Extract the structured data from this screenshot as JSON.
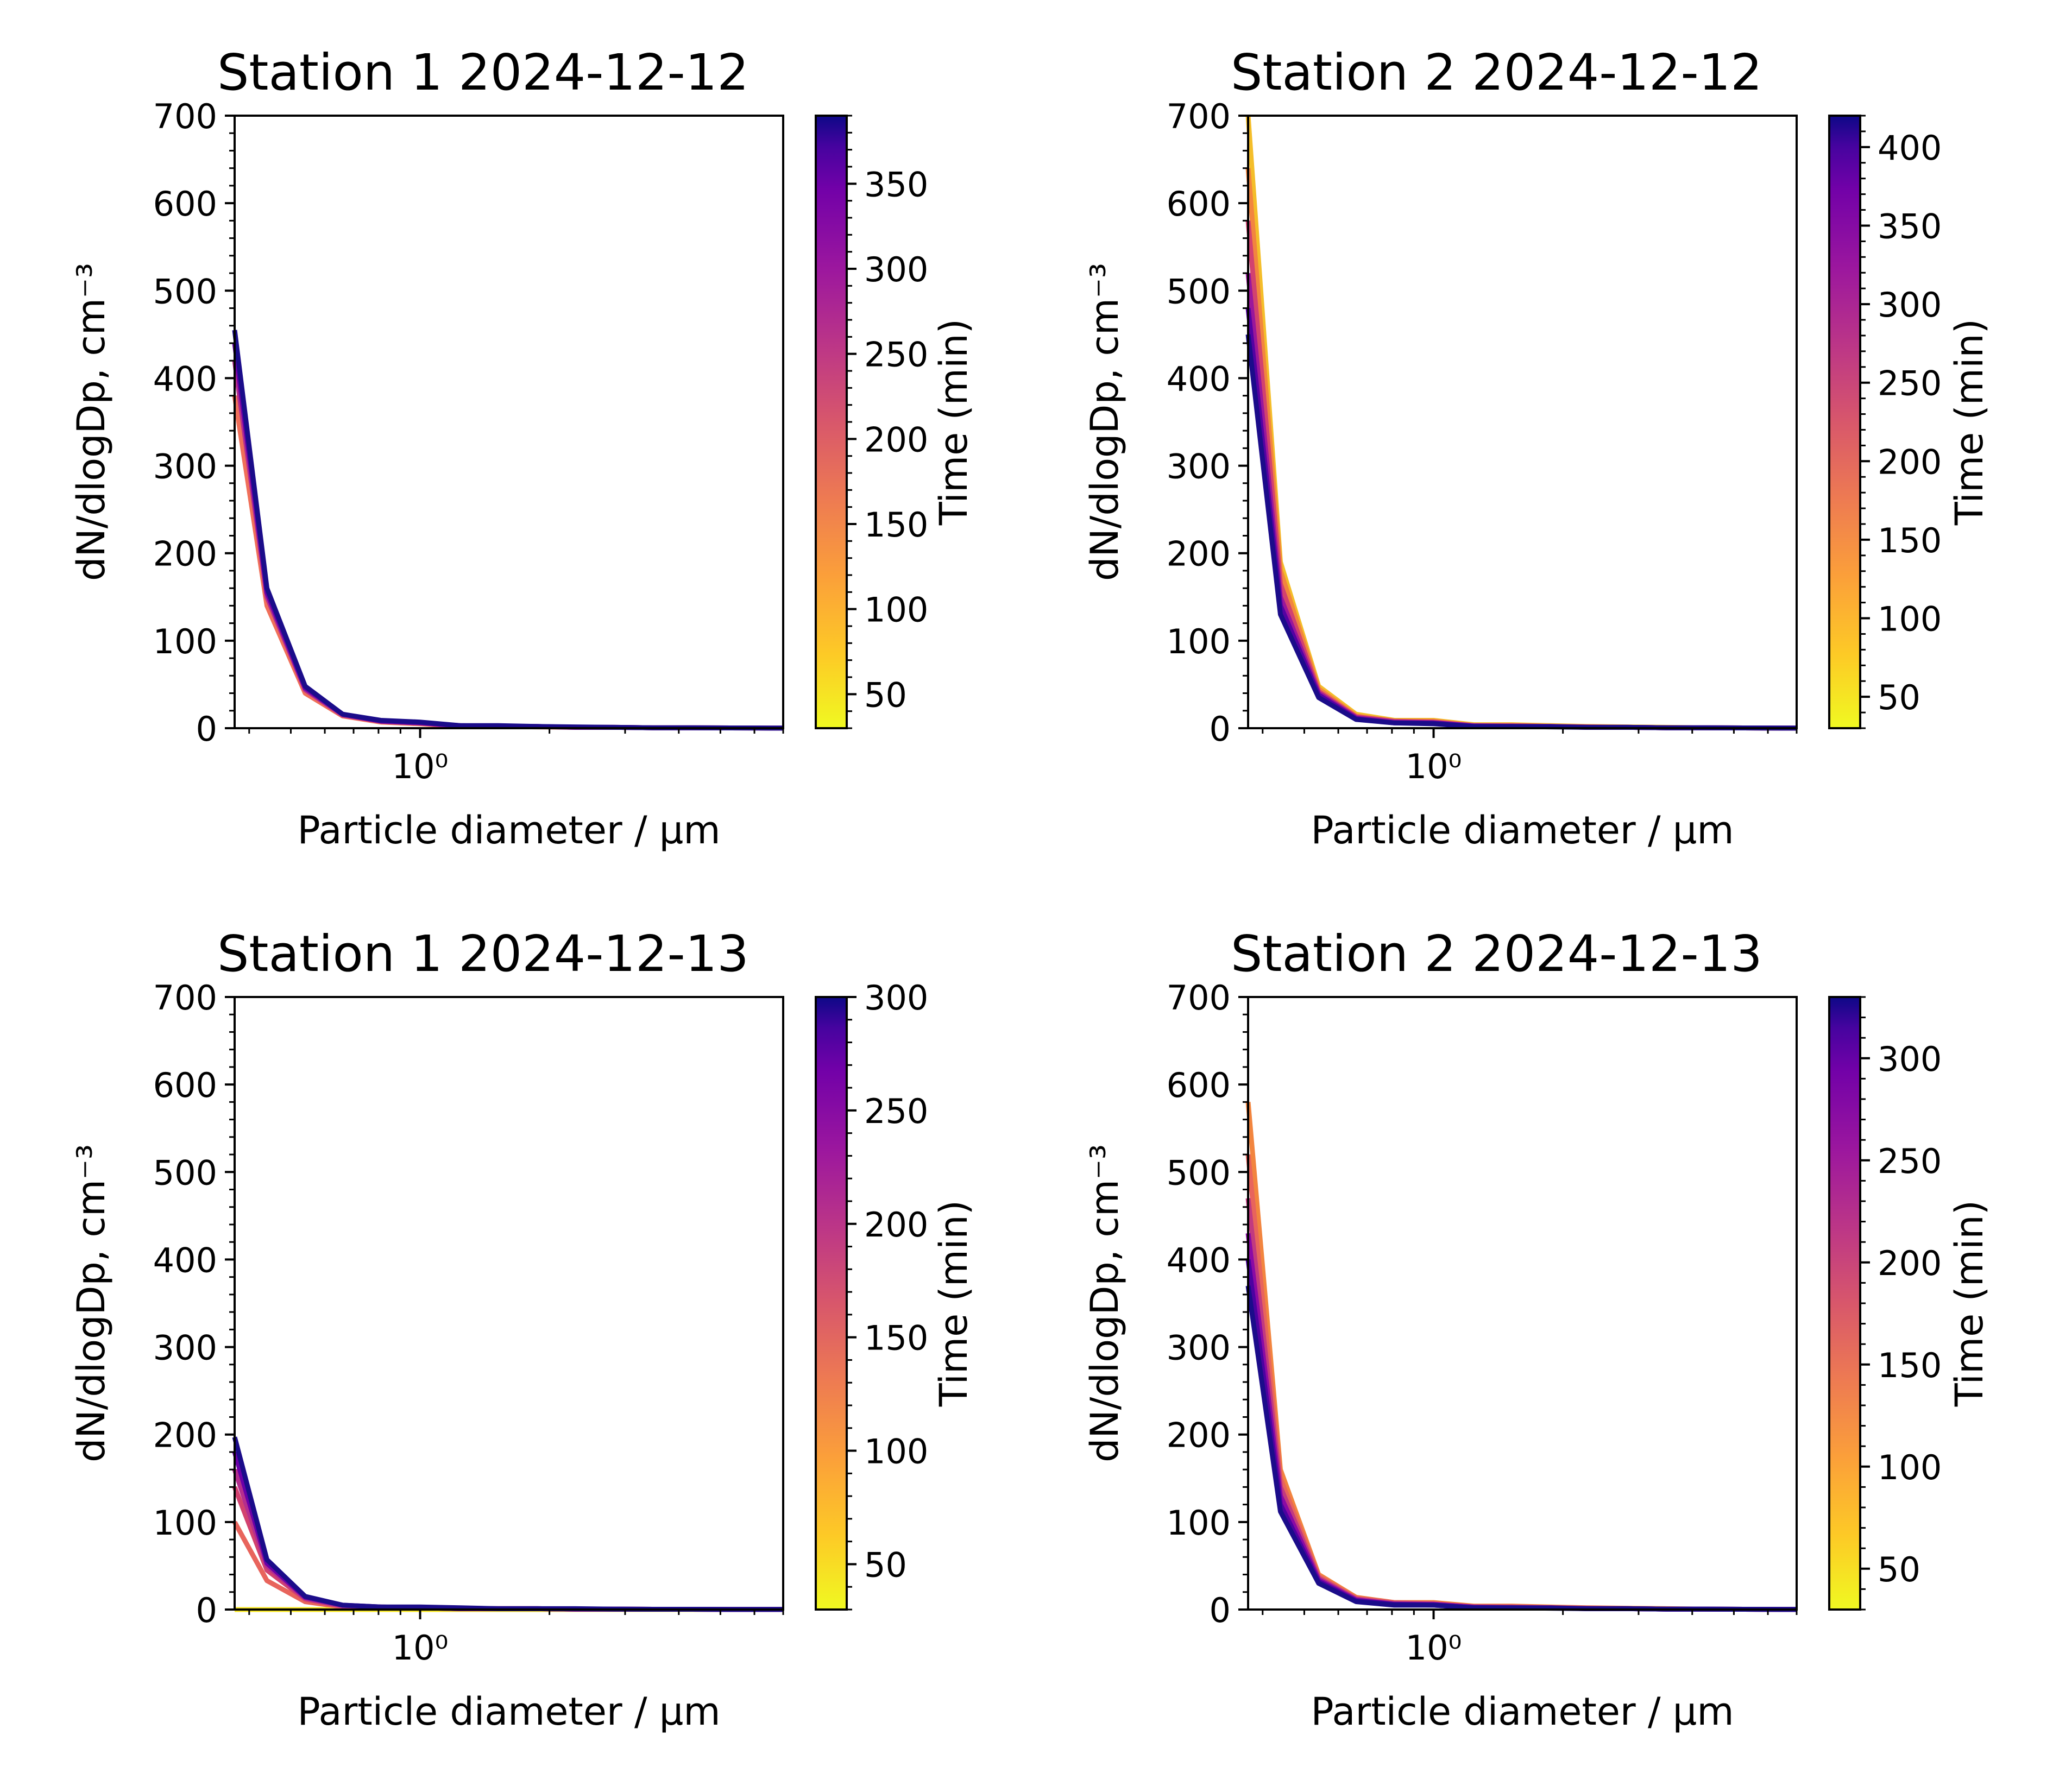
{
  "chart_data": [
    {
      "type": "line",
      "title": "Station 1 2024-12-12",
      "xlabel": "Particle diameter / μm",
      "ylabel": "dN/dlogDp, cm⁻³",
      "xscale": "log",
      "xlim": [
        0.37,
        7.0
      ],
      "ylim": [
        0,
        700
      ],
      "x_tick_labels": [
        "10⁰"
      ],
      "y_tick_labels": [
        "0",
        "100",
        "200",
        "300",
        "400",
        "500",
        "600",
        "700"
      ],
      "x": [
        0.37,
        0.44,
        0.54,
        0.66,
        0.81,
        1.0,
        1.24,
        1.52,
        1.87,
        2.3,
        2.83,
        3.49,
        4.29,
        5.28,
        6.5,
        7.0
      ],
      "colorbar": {
        "label": "Time (min)",
        "cmap": "plasma_r",
        "range": [
          30,
          390
        ],
        "tick_labels": [
          "50",
          "100",
          "150",
          "200",
          "250",
          "300",
          "350"
        ]
      },
      "series": [
        {
          "time": 150,
          "color": "#f0705a",
          "values": [
            380,
            140,
            40,
            14,
            7,
            5,
            2,
            2,
            1.5,
            1,
            1,
            0.5,
            0.5,
            0.3,
            0.2,
            0.2
          ]
        },
        {
          "time": 250,
          "color": "#b42e8e",
          "values": [
            420,
            150,
            44,
            15,
            8,
            6,
            2,
            2,
            2,
            1,
            1,
            0.5,
            0.5,
            0.3,
            0.2,
            0.2
          ]
        },
        {
          "time": 320,
          "color": "#6a00a8",
          "values": [
            440,
            155,
            46,
            16,
            8,
            6,
            3,
            2,
            2,
            1,
            1,
            0.5,
            0.5,
            0.3,
            0.2,
            0.2
          ]
        },
        {
          "time": 385,
          "color": "#1b0c8a",
          "values": [
            455,
            160,
            48,
            16,
            9,
            7,
            3,
            3,
            2,
            1.5,
            1,
            0.5,
            0.5,
            0.3,
            0.2,
            0.2
          ]
        }
      ]
    },
    {
      "type": "line",
      "title": "Station 2 2024-12-12",
      "xlabel": "Particle diameter / μm",
      "ylabel": "dN/dlogDp, cm⁻³",
      "xscale": "log",
      "xlim": [
        0.37,
        7.0
      ],
      "ylim": [
        0,
        700
      ],
      "x_tick_labels": [
        "10⁰"
      ],
      "y_tick_labels": [
        "0",
        "100",
        "200",
        "300",
        "400",
        "500",
        "600",
        "700"
      ],
      "x": [
        0.37,
        0.44,
        0.54,
        0.66,
        0.81,
        1.0,
        1.24,
        1.52,
        1.87,
        2.3,
        2.83,
        3.49,
        4.29,
        5.28,
        6.5,
        7.0
      ],
      "colorbar": {
        "label": "Time (min)",
        "cmap": "plasma_r",
        "range": [
          30,
          420
        ],
        "tick_labels": [
          "50",
          "100",
          "150",
          "200",
          "250",
          "300",
          "350",
          "400"
        ]
      },
      "series": [
        {
          "time": 60,
          "color": "#f4be2a",
          "values": [
            700,
            190,
            48,
            16,
            9,
            9,
            4,
            4,
            3,
            2,
            1.5,
            1,
            0.5,
            0.3,
            0.2,
            0.2
          ]
        },
        {
          "time": 130,
          "color": "#f2853f",
          "values": [
            640,
            180,
            45,
            14,
            8,
            8,
            3,
            3,
            2,
            1.5,
            1,
            0.5,
            0.5,
            0.3,
            0.2,
            0.2
          ]
        },
        {
          "time": 200,
          "color": "#d2426f",
          "values": [
            580,
            165,
            42,
            13,
            8,
            7,
            3,
            3,
            2,
            1.5,
            1,
            0.5,
            0.5,
            0.3,
            0.2,
            0.2
          ]
        },
        {
          "time": 280,
          "color": "#9a179b",
          "values": [
            520,
            150,
            40,
            12,
            7,
            6,
            3,
            2,
            2,
            1,
            1,
            0.5,
            0.5,
            0.3,
            0.2,
            0.2
          ]
        },
        {
          "time": 350,
          "color": "#5402a3",
          "values": [
            480,
            140,
            38,
            11,
            6,
            6,
            2,
            2,
            2,
            1,
            1,
            0.5,
            0.5,
            0.3,
            0.2,
            0.2
          ]
        },
        {
          "time": 415,
          "color": "#1b0c8a",
          "values": [
            450,
            130,
            35,
            10,
            6,
            5,
            2,
            2,
            1.5,
            1,
            1,
            0.5,
            0.5,
            0.3,
            0.2,
            0.2
          ]
        }
      ]
    },
    {
      "type": "line",
      "title": "Station 1 2024-12-13",
      "xlabel": "Particle diameter / μm",
      "ylabel": "dN/dlogDp, cm⁻³",
      "xscale": "log",
      "xlim": [
        0.37,
        7.0
      ],
      "ylim": [
        0,
        700
      ],
      "x_tick_labels": [
        "10⁰"
      ],
      "y_tick_labels": [
        "0",
        "100",
        "200",
        "300",
        "400",
        "500",
        "600",
        "700"
      ],
      "x": [
        0.37,
        0.44,
        0.54,
        0.66,
        0.81,
        1.0,
        1.24,
        1.52,
        1.87,
        2.3,
        2.83,
        3.49,
        4.29,
        5.28,
        6.5,
        7.0
      ],
      "colorbar": {
        "label": "Time (min)",
        "cmap": "plasma_r",
        "range": [
          30,
          300
        ],
        "tick_labels": [
          "50",
          "100",
          "150",
          "200",
          "250",
          "300"
        ]
      },
      "series": [
        {
          "time": 40,
          "color": "#f4e424",
          "values": [
            0,
            0,
            0,
            0,
            0,
            0,
            0,
            0,
            0,
            0,
            0,
            0,
            0,
            0,
            0,
            0
          ]
        },
        {
          "time": 130,
          "color": "#e8645c",
          "values": [
            100,
            33,
            9,
            3,
            2,
            2,
            1,
            1,
            1,
            0.5,
            0.5,
            0.3,
            0.3,
            0.2,
            0.1,
            0.1
          ]
        },
        {
          "time": 170,
          "color": "#d2426f",
          "values": [
            140,
            45,
            12,
            4,
            2,
            2,
            1,
            1,
            1,
            0.5,
            0.5,
            0.3,
            0.3,
            0.2,
            0.1,
            0.1
          ]
        },
        {
          "time": 210,
          "color": "#b42e8e",
          "values": [
            160,
            50,
            13,
            4,
            3,
            2,
            1,
            1,
            1,
            0.5,
            0.5,
            0.3,
            0.3,
            0.2,
            0.1,
            0.1
          ]
        },
        {
          "time": 255,
          "color": "#6a00a8",
          "values": [
            180,
            53,
            14,
            5,
            3,
            2,
            1,
            1,
            1,
            0.5,
            0.5,
            0.3,
            0.3,
            0.2,
            0.1,
            0.1
          ]
        },
        {
          "time": 295,
          "color": "#1b0c8a",
          "values": [
            197,
            57,
            15,
            5,
            3,
            3,
            2,
            1,
            1,
            1,
            0.5,
            0.3,
            0.3,
            0.2,
            0.1,
            0.1
          ]
        }
      ]
    },
    {
      "type": "line",
      "title": "Station 2 2024-12-13",
      "xlabel": "Particle diameter / μm",
      "ylabel": "dN/dlogDp, cm⁻³",
      "xscale": "log",
      "xlim": [
        0.37,
        7.0
      ],
      "ylim": [
        0,
        700
      ],
      "x_tick_labels": [
        "10⁰"
      ],
      "y_tick_labels": [
        "0",
        "100",
        "200",
        "300",
        "400",
        "500",
        "600",
        "700"
      ],
      "x": [
        0.37,
        0.44,
        0.54,
        0.66,
        0.81,
        1.0,
        1.24,
        1.52,
        1.87,
        2.3,
        2.83,
        3.49,
        4.29,
        5.28,
        6.5,
        7.0
      ],
      "colorbar": {
        "label": "Time (min)",
        "cmap": "plasma_r",
        "range": [
          30,
          330
        ],
        "tick_labels": [
          "50",
          "100",
          "150",
          "200",
          "250",
          "300"
        ]
      },
      "series": [
        {
          "time": 100,
          "color": "#f2853f",
          "values": [
            580,
            160,
            40,
            14,
            8,
            8,
            4,
            4,
            3,
            2,
            1.5,
            1,
            0.5,
            0.3,
            0.2,
            0.2
          ]
        },
        {
          "time": 160,
          "color": "#e8645c",
          "values": [
            520,
            150,
            38,
            13,
            8,
            7,
            3,
            3,
            2,
            1.5,
            1,
            0.5,
            0.5,
            0.3,
            0.2,
            0.2
          ]
        },
        {
          "time": 210,
          "color": "#c13a80",
          "values": [
            470,
            140,
            36,
            12,
            7,
            6,
            3,
            3,
            2,
            1.5,
            1,
            0.5,
            0.5,
            0.3,
            0.2,
            0.2
          ]
        },
        {
          "time": 260,
          "color": "#8b0aa5",
          "values": [
            430,
            130,
            34,
            11,
            6,
            6,
            3,
            2,
            2,
            1,
            1,
            0.5,
            0.5,
            0.3,
            0.2,
            0.2
          ]
        },
        {
          "time": 300,
          "color": "#4c02a1",
          "values": [
            400,
            120,
            32,
            10,
            6,
            5,
            2,
            2,
            2,
            1,
            1,
            0.5,
            0.5,
            0.3,
            0.2,
            0.2
          ]
        },
        {
          "time": 325,
          "color": "#1b0c8a",
          "values": [
            370,
            112,
            30,
            9,
            5,
            5,
            2,
            2,
            1.5,
            1,
            1,
            0.5,
            0.5,
            0.3,
            0.2,
            0.2
          ]
        }
      ]
    }
  ]
}
